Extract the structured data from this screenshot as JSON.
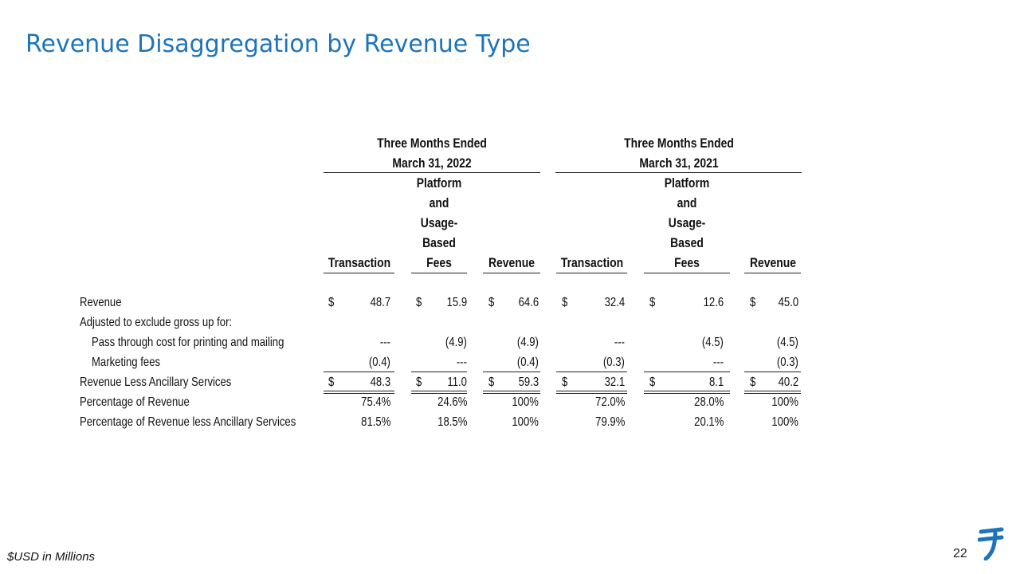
{
  "title": "Revenue Disaggregation by Revenue Type",
  "footer_note": "$USD in Millions",
  "page_number": "22",
  "logo": {
    "icon": "flywire-logo-icon",
    "color": "#1d74bb"
  },
  "colors": {
    "title": "#1d74bb",
    "text": "#111111"
  },
  "periods": [
    {
      "line1": "Three Months Ended",
      "line2": "March 31, 2022"
    },
    {
      "line1": "Three Months Ended",
      "line2": "March 31, 2021"
    }
  ],
  "columns": {
    "transaction": "Transaction",
    "platform_lines": [
      "Platform",
      "and",
      "Usage-",
      "Based",
      "Fees"
    ],
    "revenue": "Revenue"
  },
  "currency_symbol": "$",
  "rows": [
    {
      "label": "Revenue",
      "values": [
        "48.7",
        "15.9",
        "64.6",
        "32.4",
        "12.6",
        "45.0"
      ]
    },
    {
      "label": "Adjusted to exclude gross up for:",
      "values": []
    },
    {
      "label": "Pass through cost for printing and mailing",
      "values": [
        "---",
        "(4.9)",
        "(4.9)",
        "---",
        "(4.5)",
        "(4.5)"
      ]
    },
    {
      "label": "Marketing fees",
      "values": [
        "(0.4)",
        "---",
        "(0.4)",
        "(0.3)",
        "---",
        "(0.3)"
      ]
    },
    {
      "label": "Revenue Less Ancillary Services",
      "values": [
        "48.3",
        "11.0",
        "59.3",
        "32.1",
        "8.1",
        "40.2"
      ]
    },
    {
      "label": "Percentage of Revenue",
      "values": [
        "75.4%",
        "24.6%",
        "100%",
        "72.0%",
        "28.0%",
        "100%"
      ]
    },
    {
      "label": "Percentage of Revenue less Ancillary Services",
      "values": [
        "81.5%",
        "18.5%",
        "100%",
        "79.9%",
        "20.1%",
        "100%"
      ]
    }
  ]
}
